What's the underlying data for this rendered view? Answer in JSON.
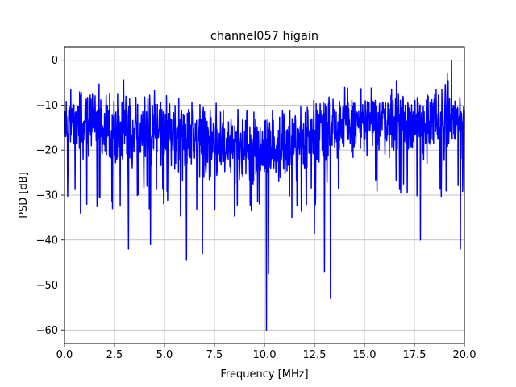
{
  "chart_data": {
    "type": "line",
    "title": "channel057 higain",
    "xlabel": "Frequency [MHz]",
    "ylabel": "PSD [dB]",
    "xlim": [
      0,
      20
    ],
    "ylim": [
      -63,
      3
    ],
    "x_ticks": [
      0,
      2.5,
      5,
      7.5,
      10,
      12.5,
      15,
      17.5,
      20
    ],
    "x_tick_labels": [
      "0.0",
      "2.5",
      "5.0",
      "7.5",
      "10.0",
      "12.5",
      "15.0",
      "17.5",
      "20.0"
    ],
    "y_ticks": [
      0,
      -10,
      -20,
      -30,
      -40,
      -50,
      -60
    ],
    "y_tick_labels": [
      "0",
      "−10",
      "−20",
      "−30",
      "−40",
      "−50",
      "−60"
    ],
    "grid": true,
    "legend": "none",
    "series_color": "#0000ff",
    "series": [
      {
        "values_description": "dense noisy PSD trace; band envelope (x MHz, upper dB, lower dB)",
        "band": [
          [
            0.0,
            -5,
            -22
          ],
          [
            1.0,
            -4,
            -24
          ],
          [
            2.0,
            -5,
            -25
          ],
          [
            3.0,
            -5,
            -25
          ],
          [
            4.0,
            -5,
            -25
          ],
          [
            5.0,
            -7,
            -26
          ],
          [
            6.0,
            -7,
            -27
          ],
          [
            7.0,
            -8,
            -28
          ],
          [
            8.0,
            -9,
            -28
          ],
          [
            9.0,
            -10,
            -29
          ],
          [
            10.0,
            -10,
            -29
          ],
          [
            11.0,
            -10,
            -28
          ],
          [
            12.0,
            -9,
            -27
          ],
          [
            13.0,
            -4,
            -24
          ],
          [
            14.0,
            -5,
            -24
          ],
          [
            15.0,
            -5,
            -23
          ],
          [
            16.0,
            -4,
            -22
          ],
          [
            17.0,
            -4,
            -22
          ],
          [
            18.0,
            -5,
            -24
          ],
          [
            19.0,
            -3,
            -24
          ],
          [
            20.0,
            -3,
            -24
          ]
        ],
        "extreme_points": [
          {
            "x": 0.8,
            "y": -34
          },
          {
            "x": 2.4,
            "y": -33
          },
          {
            "x": 3.2,
            "y": -42
          },
          {
            "x": 4.3,
            "y": -41
          },
          {
            "x": 6.1,
            "y": -44.5
          },
          {
            "x": 6.9,
            "y": -43
          },
          {
            "x": 10.1,
            "y": -60
          },
          {
            "x": 10.2,
            "y": -47.5
          },
          {
            "x": 12.5,
            "y": -38.5
          },
          {
            "x": 13.0,
            "y": -47
          },
          {
            "x": 13.3,
            "y": -53
          },
          {
            "x": 17.8,
            "y": -40
          },
          {
            "x": 19.8,
            "y": -42
          },
          {
            "x": 19.35,
            "y": 0
          }
        ]
      }
    ]
  }
}
